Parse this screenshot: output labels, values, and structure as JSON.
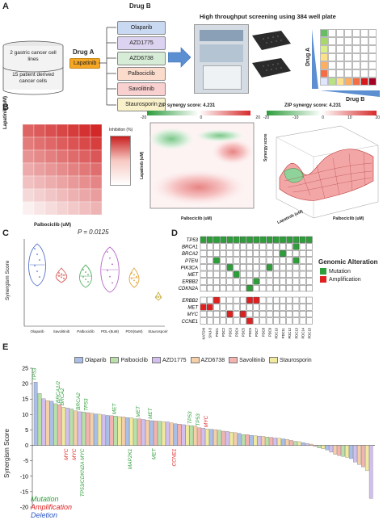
{
  "panel_a": {
    "letter": "A",
    "drug_b_title": "Drug B",
    "drug_a_label": "Drug A",
    "drug_a": "Lapatinib",
    "drug_b_list": [
      {
        "name": "Olaparib",
        "color": "#c9d9f2"
      },
      {
        "name": "AZD1775",
        "color": "#dcd3f0"
      },
      {
        "name": "AZD6738",
        "color": "#d6ecd6"
      },
      {
        "name": "Palbociclib",
        "color": "#fbdccc"
      },
      {
        "name": "Savolitinib",
        "color": "#f7d0cf"
      },
      {
        "name": "Staurosporin",
        "color": "#f8f1c9"
      }
    ],
    "cell_groups": [
      "2 gastric cancer cell lines",
      "15 patient derived cancer cells"
    ],
    "screen_title": "High throughput screening using 384 well plate",
    "matrix_drug_a": "Drug A",
    "matrix_drug_b": "Drug B"
  },
  "panel_b": {
    "letter": "B",
    "heatmap_ylabel": "Lapatinib (uM)",
    "heatmap_xlabel": "Palbociclib (uM)",
    "heatmap_legend": "Inhibition (%)",
    "contour_title": "ZIP synergy score: 4.231",
    "contour_xlabel": "Palbociclib (uM)",
    "contour_ylabel": "Lapatinib (uM)",
    "surface_title": "ZIP synergy score: 4.231",
    "surface_zlabel": "Synergy score",
    "surface_xlabel": "Palbociclib (uM)",
    "surface_ylabel": "Lapatinib (uM)",
    "cbar_ticks": [
      "-20",
      "0",
      "20"
    ],
    "cbar_ticks2": [
      "-20",
      "-10",
      "0",
      "10",
      "20"
    ]
  },
  "panel_c": {
    "letter": "C",
    "p_value": "P = 0.0125",
    "ylabel": "Synergism Score",
    "groups": [
      "Olaparib",
      "Savolitinib",
      "Palbociclib",
      "PDL-(8uM)",
      "PDX(6uM)",
      "Staurosporin"
    ]
  },
  "panel_d": {
    "letter": "D",
    "legend_title": "Genomic Alteration",
    "legend_items": [
      {
        "label": "Mutation",
        "color": "#2e9e3a"
      },
      {
        "label": "Amplification",
        "color": "#e02020"
      }
    ],
    "mutation_genes": [
      "TP53",
      "BRCA1",
      "BRCA2",
      "PTEN",
      "PIK3CA",
      "MET",
      "ERBB2",
      "CDKN2A"
    ],
    "amp_genes": [
      "ERBB2",
      "MET",
      "MYC",
      "CCNE1"
    ],
    "samples": [
      "KATOIII",
      "SNU-5",
      "PDC1",
      "PDC2",
      "PDC3",
      "PDC4",
      "PDC5",
      "PDC6",
      "PDC7",
      "PDC8",
      "PDC9",
      "PDC10",
      "PDC11",
      "PDC12",
      "PDC13",
      "PDC14",
      "PDC15"
    ],
    "mutation_matrix": [
      [
        1,
        1,
        1,
        1,
        1,
        1,
        1,
        1,
        1,
        1,
        1,
        1,
        1,
        1,
        1,
        1,
        1
      ],
      [
        0,
        0,
        0,
        0,
        0,
        0,
        0,
        0,
        0,
        0,
        0,
        0,
        0,
        0,
        1,
        0,
        0
      ],
      [
        0,
        0,
        0,
        0,
        0,
        0,
        0,
        0,
        0,
        0,
        0,
        0,
        1,
        0,
        0,
        0,
        0
      ],
      [
        0,
        0,
        1,
        0,
        0,
        0,
        0,
        0,
        0,
        0,
        0,
        0,
        0,
        0,
        1,
        0,
        0
      ],
      [
        0,
        0,
        0,
        0,
        1,
        0,
        0,
        0,
        0,
        0,
        1,
        0,
        0,
        0,
        0,
        0,
        0
      ],
      [
        0,
        0,
        0,
        0,
        0,
        1,
        0,
        0,
        0,
        0,
        0,
        0,
        0,
        0,
        0,
        0,
        0
      ],
      [
        0,
        0,
        0,
        0,
        0,
        0,
        0,
        0,
        1,
        0,
        0,
        0,
        0,
        0,
        0,
        0,
        0
      ],
      [
        0,
        0,
        0,
        0,
        0,
        0,
        0,
        1,
        0,
        0,
        0,
        0,
        0,
        0,
        0,
        0,
        0
      ]
    ],
    "amp_matrix": [
      [
        0,
        0,
        1,
        0,
        0,
        0,
        0,
        1,
        1,
        0,
        0,
        0,
        0,
        0,
        0,
        0,
        0
      ],
      [
        1,
        1,
        0,
        0,
        0,
        0,
        0,
        0,
        0,
        0,
        0,
        0,
        0,
        0,
        0,
        0,
        0
      ],
      [
        0,
        0,
        0,
        0,
        1,
        0,
        1,
        0,
        0,
        0,
        0,
        0,
        0,
        0,
        0,
        0,
        0
      ],
      [
        0,
        0,
        0,
        0,
        0,
        0,
        0,
        1,
        0,
        0,
        0,
        0,
        0,
        0,
        0,
        0,
        0
      ]
    ]
  },
  "panel_e": {
    "letter": "E",
    "ylabel": "Synergism Score",
    "legend": [
      {
        "name": "Olaparib",
        "color": "#aabfe8"
      },
      {
        "name": "Palbociclib",
        "color": "#b9e0a8"
      },
      {
        "name": "AZD1775",
        "color": "#d2bff0"
      },
      {
        "name": "AZD6738",
        "color": "#f4cfa8"
      },
      {
        "name": "Savolitinib",
        "color": "#f3b3b0"
      },
      {
        "name": "Staurosporin",
        "color": "#f1ea9e"
      }
    ],
    "key_labels": [
      {
        "label": "Mutation",
        "color": "#2e9e3a"
      },
      {
        "label": "Amplification",
        "color": "#e02020"
      },
      {
        "label": "Deletion",
        "color": "#2a56c6"
      }
    ]
  },
  "chart_data": {
    "type": "bar",
    "ylabel": "Synergism Score",
    "ylim": [
      -20,
      25
    ],
    "yticks": [
      -20,
      -15,
      -10,
      -5,
      0,
      5,
      10,
      15,
      20,
      25
    ],
    "series": [
      {
        "name": "Olaparib",
        "values": [
          20.5,
          14.3,
          10.2,
          9.7,
          9.0,
          8.0,
          7.0,
          5.2,
          3.9,
          3.2,
          2.1,
          0.9,
          -1.5,
          -4.3
        ]
      },
      {
        "name": "Palbociclib",
        "values": [
          16.8,
          13.5,
          11.8,
          10.8,
          9.5,
          8.6,
          7.8,
          6.4,
          4.9,
          3.5,
          2.7,
          1.3,
          -0.8,
          -3.6
        ]
      },
      {
        "name": "AZD1775",
        "values": [
          15.1,
          12.1,
          10.9,
          9.9,
          8.4,
          7.6,
          6.7,
          5.6,
          4.5,
          3.0,
          2.4,
          0.6,
          -2.2,
          -5.4,
          -17.2
        ]
      },
      {
        "name": "AZD6738",
        "values": [
          14.5,
          11.2,
          10.4,
          9.2,
          8.2,
          7.3,
          6.2,
          5.1,
          4.1,
          2.9,
          1.9,
          0.4,
          -2.9,
          -6.2
        ]
      },
      {
        "name": "Savolitinib",
        "values": [
          13.2,
          10.6,
          9.6,
          8.6,
          7.9,
          6.9,
          5.7,
          4.6,
          3.5,
          2.6,
          1.6,
          -0.3,
          -3.3,
          -7.0
        ]
      },
      {
        "name": "Staurosporin",
        "values": [
          12.4,
          10.1,
          9.3,
          8.9,
          7.7,
          6.5,
          5.3,
          4.3,
          3.1,
          2.3,
          1.2,
          -1.1,
          -3.9,
          -8.2
        ]
      }
    ],
    "annotations": [
      {
        "text": "TP53",
        "type": "Mutation"
      },
      {
        "text": "BRCA1/2",
        "type": "Mutation"
      },
      {
        "text": "BRCA2",
        "type": "Mutation"
      },
      {
        "text": "BRCA2",
        "type": "Mutation"
      },
      {
        "text": "TP53",
        "type": "Mutation"
      },
      {
        "text": "MET",
        "type": "Mutation"
      },
      {
        "text": "MET",
        "type": "Mutation"
      },
      {
        "text": "MET",
        "type": "Mutation"
      },
      {
        "text": "TP53",
        "type": "Mutation"
      },
      {
        "text": "MYC",
        "type": "Amplification"
      },
      {
        "text": "MYC",
        "type": "Amplification"
      },
      {
        "text": "TP53/CDKN2A MYC",
        "type": "Mutation"
      },
      {
        "text": "MAP2K1",
        "type": "Mutation"
      },
      {
        "text": "CCNE1",
        "type": "Amplification"
      },
      {
        "text": "MET",
        "type": "Mutation"
      },
      {
        "text": "TP53",
        "type": "Mutation"
      },
      {
        "text": "MYC",
        "type": "Amplification"
      }
    ]
  }
}
